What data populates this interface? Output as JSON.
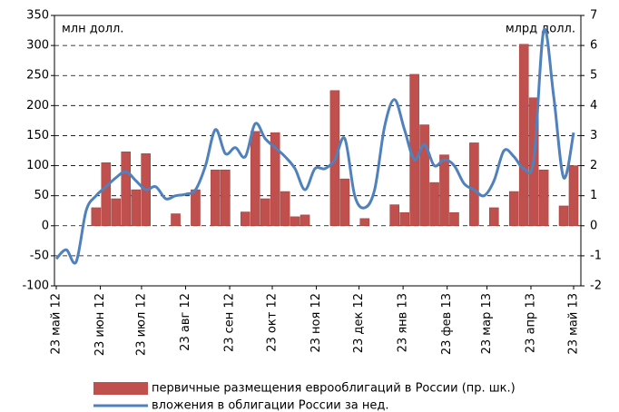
{
  "chart_data": {
    "type": "bar_line",
    "y_unit_label": "млн долл.",
    "y2_unit_label": "млрд долл.",
    "x": [
      0,
      1,
      2,
      3,
      4,
      5,
      6,
      7,
      8,
      9,
      10,
      11,
      12,
      13,
      14,
      15,
      16,
      17,
      18,
      19,
      20,
      21,
      22,
      23,
      24,
      25,
      26,
      27,
      28,
      29,
      30,
      31,
      32,
      33,
      34,
      35,
      36,
      37,
      38,
      39,
      40,
      41,
      42,
      43,
      44,
      45,
      46,
      47,
      48,
      49,
      50,
      51,
      52
    ],
    "xlim": [
      0,
      52
    ],
    "xticks": [
      {
        "value": 0,
        "label": "23 май 12"
      },
      {
        "value": 4.43,
        "label": "23 июн 12"
      },
      {
        "value": 8.57,
        "label": "23 июл 12"
      },
      {
        "value": 13,
        "label": "23 авг 12"
      },
      {
        "value": 17.43,
        "label": "23 сен 12"
      },
      {
        "value": 21.71,
        "label": "23 окт 12"
      },
      {
        "value": 26.14,
        "label": "23 ноя 12"
      },
      {
        "value": 30.43,
        "label": "23 дек 12"
      },
      {
        "value": 34.86,
        "label": "23 янв 13"
      },
      {
        "value": 39.29,
        "label": "23 фев 13"
      },
      {
        "value": 43.29,
        "label": "23 мар 13"
      },
      {
        "value": 47.71,
        "label": "23 апр 13"
      },
      {
        "value": 52,
        "label": "23 май 13"
      }
    ],
    "ylim": [
      -100,
      350
    ],
    "yticks": [
      -100,
      -50,
      0,
      50,
      100,
      150,
      200,
      250,
      300,
      350
    ],
    "y2lim": [
      -2,
      7
    ],
    "y2ticks": [
      -2,
      -1,
      0,
      1,
      2,
      3,
      4,
      5,
      6,
      7
    ],
    "grid": true,
    "series": [
      {
        "name": "первичные размещения еврооблигаций в России (пр. шк.)",
        "type": "bar",
        "color": "#c0504d",
        "values": [
          null,
          null,
          null,
          null,
          30,
          105,
          45,
          123,
          60,
          120,
          null,
          null,
          20,
          null,
          60,
          null,
          93,
          93,
          null,
          23,
          157,
          45,
          155,
          57,
          15,
          18,
          null,
          null,
          225,
          78,
          null,
          12,
          null,
          null,
          35,
          22,
          252,
          168,
          72,
          118,
          22,
          null,
          138,
          null,
          30,
          null,
          57,
          302,
          213,
          93,
          null,
          33,
          100
        ]
      },
      {
        "name": "вложения в облигации России за нед.",
        "type": "line",
        "color": "#4f81bd",
        "axis": "y2",
        "values": [
          -1.1,
          -0.8,
          -1.2,
          0.5,
          1.0,
          1.3,
          1.6,
          1.8,
          1.5,
          1.2,
          1.3,
          0.9,
          1.0,
          1.05,
          1.2,
          2.0,
          3.2,
          2.4,
          2.6,
          2.3,
          3.4,
          2.9,
          2.6,
          2.3,
          1.9,
          1.2,
          1.9,
          1.9,
          2.2,
          2.9,
          1.0,
          0.6,
          1.2,
          3.3,
          4.2,
          3.2,
          2.2,
          2.7,
          2.0,
          2.2,
          2.0,
          1.4,
          1.2,
          1.0,
          1.5,
          2.5,
          2.3,
          1.9,
          2.2,
          6.5,
          4.3,
          1.6,
          3.1
        ]
      }
    ]
  }
}
